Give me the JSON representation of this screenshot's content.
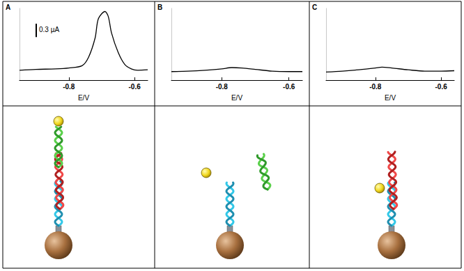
{
  "chart_data": [
    {
      "type": "line",
      "title": "A",
      "xlabel": "E/V",
      "x": [
        -0.95,
        -0.9,
        -0.84,
        -0.8,
        -0.76,
        -0.74,
        -0.72,
        -0.71,
        -0.69,
        -0.68,
        -0.67,
        -0.65,
        -0.63,
        -0.61,
        -0.59,
        -0.56
      ],
      "values": [
        0.22,
        0.24,
        0.25,
        0.27,
        0.32,
        0.51,
        0.94,
        1.37,
        1.53,
        1.42,
        1.05,
        0.62,
        0.35,
        0.25,
        0.22,
        0.23
      ],
      "color": "#000000",
      "xlim": [
        -0.95,
        -0.56
      ],
      "xticks": [
        -0.8,
        -0.6
      ],
      "ylim": [
        0,
        1.6
      ],
      "tick_labels": "x",
      "grid": false,
      "scale_bar": {
        "value": 0.3,
        "label": "0.3 µA"
      }
    },
    {
      "type": "line",
      "title": "B",
      "xlabel": "E/V",
      "x": [
        -0.95,
        -0.9,
        -0.85,
        -0.8,
        -0.77,
        -0.74,
        -0.7,
        -0.65,
        -0.6,
        -0.56
      ],
      "values": [
        0.19,
        0.2,
        0.22,
        0.25,
        0.28,
        0.27,
        0.24,
        0.2,
        0.19,
        0.19
      ],
      "color": "#000000",
      "xlim": [
        -0.95,
        -0.56
      ],
      "xticks": [
        -0.8,
        -0.6
      ],
      "ylim": [
        0,
        1.6
      ],
      "tick_labels": "x",
      "grid": false
    },
    {
      "type": "line",
      "title": "C",
      "xlabel": "E/V",
      "x": [
        -0.95,
        -0.9,
        -0.85,
        -0.8,
        -0.78,
        -0.75,
        -0.7,
        -0.65,
        -0.6,
        -0.56
      ],
      "values": [
        0.18,
        0.2,
        0.23,
        0.27,
        0.29,
        0.27,
        0.23,
        0.2,
        0.2,
        0.21
      ],
      "color": "#000000",
      "xlim": [
        -0.95,
        -0.56
      ],
      "xticks": [
        -0.8,
        -0.6
      ],
      "ylim": [
        0,
        1.6
      ],
      "tick_labels": "x",
      "grid": false
    }
  ]
}
